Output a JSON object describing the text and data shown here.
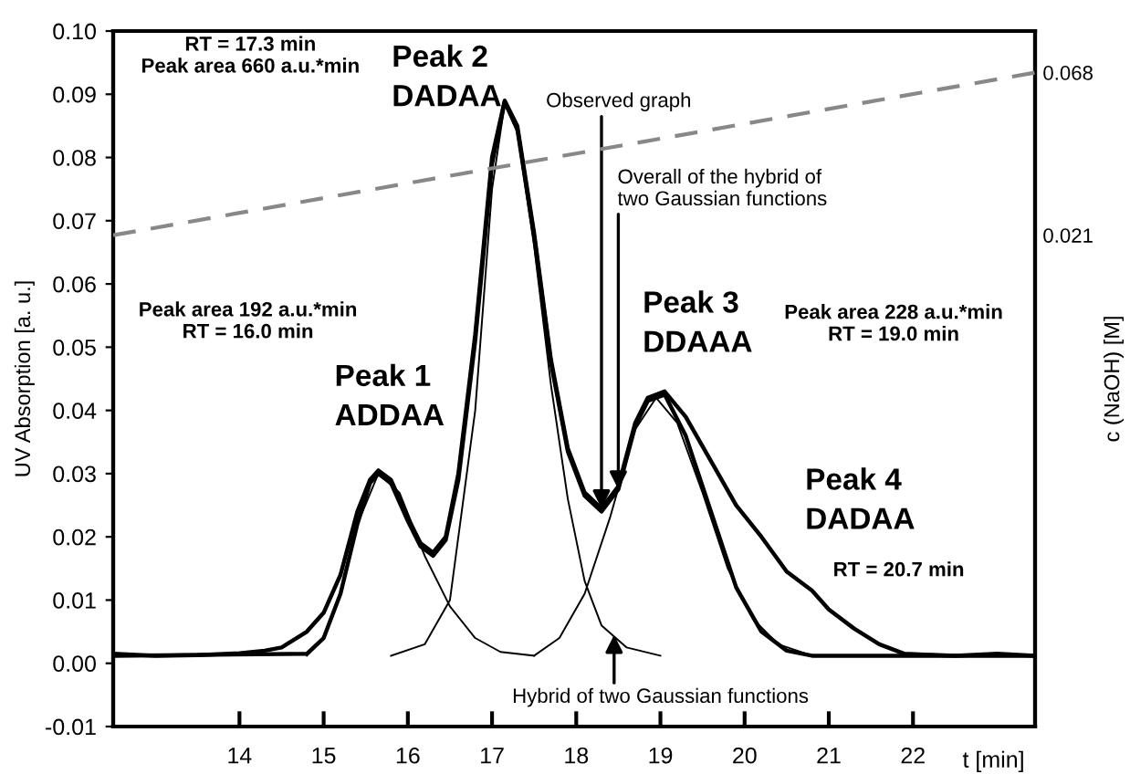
{
  "chart_data": {
    "type": "line",
    "xlabel": "t [min]",
    "ylabel": "UV Absorption [a. u.]",
    "y2label": "c (NaOH) [M]",
    "xlim": [
      12.5,
      23.45
    ],
    "xticks": [
      14,
      15,
      16,
      17,
      18,
      19,
      20,
      21,
      22
    ],
    "ylim": [
      -0.01,
      0.1
    ],
    "yticks": [
      {
        "value": -0.01,
        "label": "-0.01"
      },
      {
        "value": 0,
        "label": "0.00"
      },
      {
        "value": 0.01,
        "label": "0.01"
      },
      {
        "value": 0.02,
        "label": "0.02"
      },
      {
        "value": 0.03,
        "label": "0.03"
      },
      {
        "value": 0.04,
        "label": "0.04"
      },
      {
        "value": 0.05,
        "label": "0.05"
      },
      {
        "value": 0.06,
        "label": "0.06"
      },
      {
        "value": 0.07,
        "label": "0.07"
      },
      {
        "value": 0.08,
        "label": "0.08"
      },
      {
        "value": 0.09,
        "label": "0.09"
      },
      {
        "value": 0.1,
        "label": "0.10"
      }
    ],
    "y2lim": [
      -0.121,
      0.08
    ],
    "y2ticks": [
      0.021,
      0.068
    ],
    "grid": false,
    "series": [
      {
        "color": "#000000",
        "x": [
          12.5,
          13.0,
          13.5,
          14.0,
          14.3,
          14.5,
          14.8,
          15.0,
          15.2,
          15.4,
          15.55,
          15.65,
          15.8,
          16.0,
          16.15,
          16.3,
          16.45,
          16.6,
          16.8,
          17.0,
          17.15,
          17.3,
          17.5,
          17.7,
          17.9,
          18.1,
          18.3,
          18.5,
          18.7,
          18.85,
          19.05,
          19.3,
          19.6,
          19.9,
          20.2,
          20.5,
          20.8,
          21.0,
          21.3,
          21.6,
          21.9,
          22.5,
          23.0,
          23.45
        ],
        "values": [
          0.0015,
          0.0012,
          0.0013,
          0.0016,
          0.002,
          0.0025,
          0.005,
          0.008,
          0.014,
          0.024,
          0.029,
          0.0305,
          0.029,
          0.023,
          0.019,
          0.0175,
          0.02,
          0.03,
          0.052,
          0.08,
          0.089,
          0.085,
          0.068,
          0.048,
          0.034,
          0.027,
          0.0245,
          0.028,
          0.038,
          0.042,
          0.043,
          0.039,
          0.032,
          0.025,
          0.02,
          0.0145,
          0.0115,
          0.0085,
          0.0055,
          0.003,
          0.0015,
          0.0012,
          0.0015,
          0.0012
        ]
      },
      {
        "color": "#000000",
        "x": [
          12.5,
          14.8,
          15.0,
          15.2,
          15.4,
          15.55,
          15.65,
          15.8,
          16.0,
          16.15,
          16.3,
          16.45,
          16.6,
          16.8,
          17.0,
          17.15,
          17.3,
          17.5,
          17.7,
          17.9,
          18.1,
          18.3,
          18.5,
          18.7,
          18.85,
          19.05,
          19.3,
          19.6,
          19.9,
          20.2,
          20.5,
          20.8,
          23.45
        ],
        "values": [
          0.0012,
          0.0015,
          0.004,
          0.011,
          0.022,
          0.0285,
          0.03,
          0.0285,
          0.0225,
          0.0185,
          0.017,
          0.0195,
          0.029,
          0.051,
          0.079,
          0.0888,
          0.0845,
          0.0675,
          0.0475,
          0.0335,
          0.0265,
          0.024,
          0.0275,
          0.0375,
          0.0415,
          0.0425,
          0.036,
          0.024,
          0.012,
          0.005,
          0.002,
          0.0012,
          0.0012
        ]
      },
      {
        "color": "#000000",
        "x": [
          14.8,
          15.0,
          15.2,
          15.4,
          15.65,
          15.9,
          16.2,
          16.5,
          16.8,
          17.1,
          17.5
        ],
        "values": [
          0.0012,
          0.004,
          0.011,
          0.022,
          0.03,
          0.027,
          0.017,
          0.009,
          0.004,
          0.0018,
          0.0012
        ]
      },
      {
        "color": "#000000",
        "x": [
          15.8,
          16.2,
          16.5,
          16.8,
          17.0,
          17.15,
          17.3,
          17.5,
          17.7,
          17.9,
          18.1,
          18.3,
          18.6,
          19.0
        ],
        "values": [
          0.0012,
          0.003,
          0.01,
          0.04,
          0.075,
          0.0885,
          0.084,
          0.066,
          0.044,
          0.026,
          0.013,
          0.006,
          0.0025,
          0.0012
        ]
      },
      {
        "color": "#000000",
        "x": [
          17.5,
          17.8,
          18.1,
          18.4,
          18.7,
          18.95,
          19.2,
          19.5,
          19.8,
          20.1,
          20.4,
          20.8
        ],
        "values": [
          0.0012,
          0.004,
          0.011,
          0.023,
          0.037,
          0.042,
          0.038,
          0.027,
          0.015,
          0.007,
          0.003,
          0.0012
        ]
      },
      {
        "color": "#888888",
        "axis": "y2",
        "line_style": "dashed",
        "x": [
          12.5,
          23.45
        ],
        "values": [
          0.021,
          0.068
        ]
      }
    ],
    "annotations": [
      "RT = 17.3 min\nPeak area 660 a.u.*min",
      "Peak 2\nDADAA",
      {
        "text": "Observed graph",
        "x": 18.3,
        "y": 0.0245
      },
      {
        "text": "Overall of the hybrid of\ntwo Gaussian functions",
        "x": 18.5,
        "y": 0.0275
      },
      "Peak area 192 a.u.*min\nRT = 16.0 min",
      "Peak 1\nADDAA",
      "Peak 3\nDDAAA",
      "Peak area 228 a.u.*min\nRT = 19.0 min",
      "Peak 4\nDADAA",
      "RT = 20.7 min",
      {
        "text": "Hybrid of two Gaussian functions",
        "x": 18.45,
        "y": 0.0045
      }
    ]
  }
}
